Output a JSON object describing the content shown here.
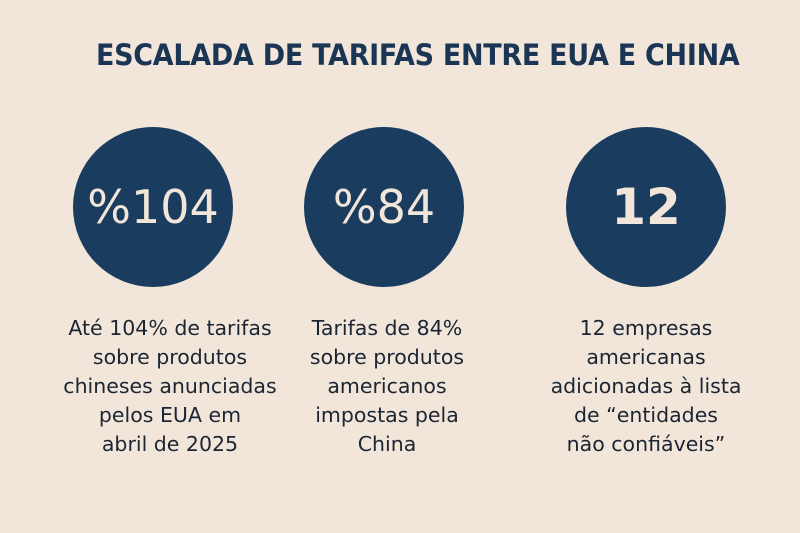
{
  "title": "ESCALADA DE TARIFAS ENTRE EUA E CHINA",
  "colors": {
    "background": "#f1e6d9",
    "circle": "#1a3c5e",
    "title": "#1b3554",
    "text": "#1b2533",
    "circle_text": "#f1e6d9"
  },
  "stats": [
    {
      "value": "%104",
      "description_lines": [
        "Até 104% de tarifas",
        "sobre produtos",
        "chineses anunciadas",
        "pelos EUA em",
        "abril de 2025"
      ]
    },
    {
      "value": "%84",
      "description_lines": [
        "Tarifas de 84%",
        "sobre produtos",
        "americanos",
        "impostas pela",
        "China"
      ]
    },
    {
      "value": "12",
      "description_lines": [
        "12 empresas",
        "americanas",
        "adicionadas à lista",
        "de “entidades",
        "não confiáveis”"
      ]
    }
  ]
}
